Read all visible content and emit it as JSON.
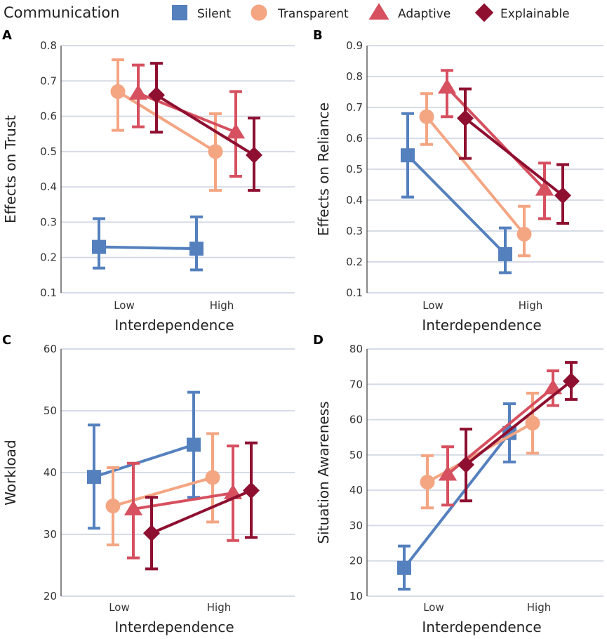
{
  "legend": {
    "title": "Communication",
    "entries": [
      {
        "name": "Silent",
        "color": "#5480be",
        "marker": "square"
      },
      {
        "name": "Transparent",
        "color": "#f4a582",
        "marker": "circle"
      },
      {
        "name": "Adaptive",
        "color": "#d6505f",
        "marker": "triangle"
      },
      {
        "name": "Explainable",
        "color": "#8e0f30",
        "marker": "diamond"
      }
    ]
  },
  "chart_data": [
    {
      "panel": "A",
      "type": "line",
      "xlabel": "Interdependence",
      "ylabel": "Effects on Trust",
      "categories": [
        "Low",
        "High"
      ],
      "ylim": [
        0.1,
        0.8
      ],
      "yticks": [
        "0.1",
        "0.2",
        "0.3",
        "0.4",
        "0.5",
        "0.6",
        "0.7",
        "0.8"
      ],
      "grid": true,
      "series": [
        {
          "name": "Silent",
          "values": [
            0.23,
            0.225
          ],
          "lower": [
            0.17,
            0.165
          ],
          "upper": [
            0.31,
            0.315
          ]
        },
        {
          "name": "Transparent",
          "values": [
            0.67,
            0.5
          ],
          "lower": [
            0.56,
            0.39
          ],
          "upper": [
            0.76,
            0.607
          ]
        },
        {
          "name": "Adaptive",
          "values": [
            0.665,
            0.555
          ],
          "lower": [
            0.57,
            0.43
          ],
          "upper": [
            0.745,
            0.67
          ]
        },
        {
          "name": "Explainable",
          "values": [
            0.66,
            0.49
          ],
          "lower": [
            0.555,
            0.39
          ],
          "upper": [
            0.75,
            0.595
          ]
        }
      ]
    },
    {
      "panel": "B",
      "type": "line",
      "xlabel": "Interdependence",
      "ylabel": "Effects on Reliance",
      "categories": [
        "Low",
        "High"
      ],
      "ylim": [
        0.1,
        0.9
      ],
      "yticks": [
        "0.1",
        "0.2",
        "0.3",
        "0.4",
        "0.5",
        "0.6",
        "0.7",
        "0.8",
        "0.9"
      ],
      "grid": true,
      "series": [
        {
          "name": "Silent",
          "values": [
            0.545,
            0.225
          ],
          "lower": [
            0.41,
            0.165
          ],
          "upper": [
            0.68,
            0.31
          ]
        },
        {
          "name": "Transparent",
          "values": [
            0.67,
            0.29
          ],
          "lower": [
            0.58,
            0.22
          ],
          "upper": [
            0.745,
            0.38
          ]
        },
        {
          "name": "Adaptive",
          "values": [
            0.765,
            0.435
          ],
          "lower": [
            0.67,
            0.34
          ],
          "upper": [
            0.82,
            0.52
          ]
        },
        {
          "name": "Explainable",
          "values": [
            0.665,
            0.415
          ],
          "lower": [
            0.535,
            0.325
          ],
          "upper": [
            0.76,
            0.515
          ]
        }
      ]
    },
    {
      "panel": "C",
      "type": "line",
      "xlabel": "Interdependence",
      "ylabel": "Workload",
      "categories": [
        "Low",
        "High"
      ],
      "ylim": [
        20,
        60
      ],
      "yticks": [
        "20",
        "30",
        "40",
        "50",
        "60"
      ],
      "grid": true,
      "series": [
        {
          "name": "Silent",
          "values": [
            39.3,
            44.5
          ],
          "lower": [
            31,
            36
          ],
          "upper": [
            47.7,
            53
          ]
        },
        {
          "name": "Transparent",
          "values": [
            34.6,
            39.2
          ],
          "lower": [
            28.3,
            32
          ],
          "upper": [
            40.8,
            46.3
          ]
        },
        {
          "name": "Adaptive",
          "values": [
            34.1,
            36.7
          ],
          "lower": [
            26.2,
            29
          ],
          "upper": [
            41.5,
            44.3
          ]
        },
        {
          "name": "Explainable",
          "values": [
            30.2,
            37.1
          ],
          "lower": [
            24.4,
            29.5
          ],
          "upper": [
            36,
            44.8
          ]
        }
      ]
    },
    {
      "panel": "D",
      "type": "line",
      "xlabel": "Interdependence",
      "ylabel": "Situation Awareness",
      "categories": [
        "Low",
        "High"
      ],
      "ylim": [
        10,
        80
      ],
      "yticks": [
        "10",
        "20",
        "30",
        "40",
        "50",
        "60",
        "70",
        "80"
      ],
      "grid": true,
      "series": [
        {
          "name": "Silent",
          "values": [
            18,
            56.2
          ],
          "lower": [
            12,
            48
          ],
          "upper": [
            24.2,
            64.5
          ]
        },
        {
          "name": "Transparent",
          "values": [
            42.3,
            59
          ],
          "lower": [
            35,
            50.5
          ],
          "upper": [
            49.8,
            67.5
          ]
        },
        {
          "name": "Adaptive",
          "values": [
            44.5,
            69
          ],
          "lower": [
            35.8,
            64
          ],
          "upper": [
            52.3,
            73.8
          ]
        },
        {
          "name": "Explainable",
          "values": [
            47.2,
            70.9
          ],
          "lower": [
            37,
            65.7
          ],
          "upper": [
            57.3,
            76.2
          ]
        }
      ]
    }
  ]
}
